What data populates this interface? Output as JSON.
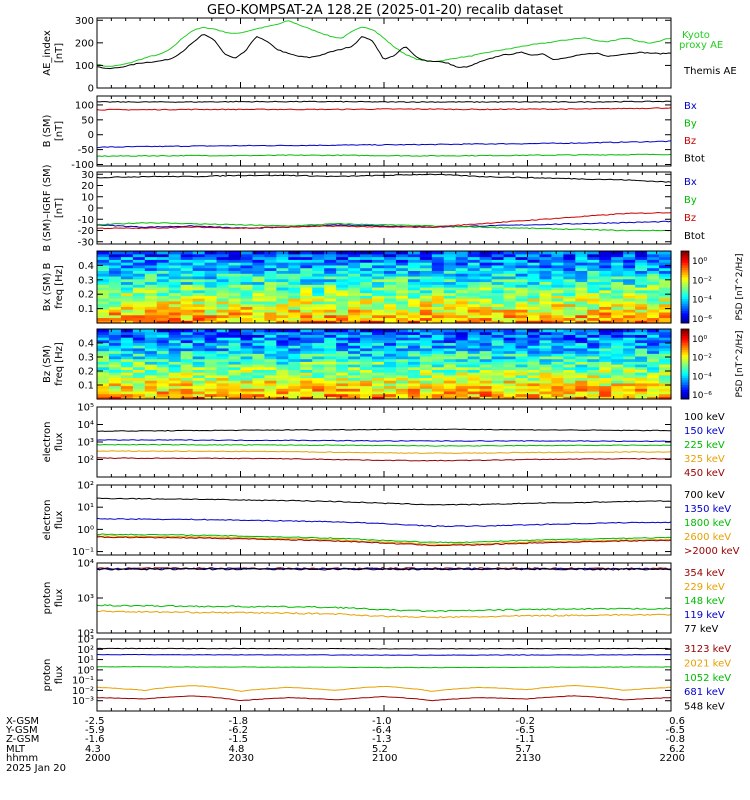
{
  "title": "GEO-KOMPSAT-2A 128.2E (2025-01-20) recalib dataset",
  "chart_data": [
    {
      "type": "line",
      "ylabel": "AE_index [nT]",
      "ylim": [
        0,
        310
      ],
      "yticks": [
        0,
        100,
        200,
        300
      ],
      "series": [
        {
          "name": "Kyoto proxy AE",
          "color": "#22cc22",
          "values": [
            105,
            95,
            100,
            110,
            125,
            140,
            150,
            175,
            220,
            255,
            268,
            262,
            248,
            240,
            250,
            262,
            272,
            282,
            298,
            280,
            262,
            245,
            228,
            220,
            250,
            272,
            258,
            220,
            180,
            150,
            128,
            120,
            118,
            125,
            135,
            140,
            150,
            160,
            168,
            175,
            185,
            192,
            198,
            205,
            212,
            218,
            222,
            210,
            205,
            215,
            220,
            205,
            200,
            210,
            222
          ]
        },
        {
          "name": "Themis AE",
          "color": "#000000",
          "values": [
            95,
            85,
            90,
            100,
            110,
            115,
            120,
            130,
            160,
            200,
            238,
            215,
            150,
            130,
            165,
            230,
            205,
            170,
            152,
            140,
            135,
            145,
            160,
            172,
            185,
            230,
            205,
            125,
            145,
            185,
            138,
            120,
            118,
            110,
            90,
            95,
            115,
            130,
            145,
            150,
            158,
            145,
            152,
            125,
            132,
            142,
            150,
            155,
            140,
            147,
            152,
            158,
            155,
            152,
            155
          ]
        }
      ]
    },
    {
      "type": "line",
      "ylabel": "B (SM) [nT]",
      "ylim": [
        -105,
        130
      ],
      "yticks": [
        -100,
        -50,
        0,
        50,
        100
      ],
      "series": [
        {
          "name": "Bx",
          "color": "#0000cc",
          "values": [
            -42,
            -40,
            -38,
            -37,
            -36,
            -35,
            -34,
            -33,
            -31,
            -30,
            -28,
            -25,
            -22
          ]
        },
        {
          "name": "By",
          "color": "#00bb00",
          "values": [
            -72,
            -71,
            -70,
            -70,
            -69,
            -69,
            -70,
            -71,
            -70,
            -69,
            -68,
            -67,
            -66
          ]
        },
        {
          "name": "Bz",
          "color": "#cc0000",
          "values": [
            84,
            84,
            85,
            85,
            85,
            85,
            86,
            86,
            85,
            86,
            86,
            88,
            90
          ]
        },
        {
          "name": "Btot",
          "color": "#000000",
          "values": [
            110,
            110,
            110,
            111,
            111,
            111,
            110,
            110,
            110,
            110,
            110,
            111,
            112
          ]
        }
      ]
    },
    {
      "type": "line",
      "ylabel": "B (SM)-IGRF (SM) [nT]",
      "ylim": [
        -32,
        32
      ],
      "yticks": [
        -30,
        -20,
        -10,
        0,
        10,
        20,
        30
      ],
      "series": [
        {
          "name": "Bx",
          "color": "#0000cc",
          "values": [
            -15,
            -17,
            -16,
            -18,
            -17,
            -15,
            -16,
            -17,
            -16,
            -15,
            -14,
            -13,
            -12
          ]
        },
        {
          "name": "By",
          "color": "#00bb00",
          "values": [
            -15,
            -13,
            -14,
            -15,
            -16,
            -14,
            -15,
            -16,
            -17,
            -18,
            -19,
            -20,
            -20
          ]
        },
        {
          "name": "Bz",
          "color": "#cc0000",
          "values": [
            -18,
            -18,
            -17,
            -18,
            -17,
            -16,
            -17,
            -17,
            -14,
            -11,
            -8,
            -5,
            -4
          ]
        },
        {
          "name": "Btot",
          "color": "#000000",
          "values": [
            27,
            28,
            28,
            29,
            29,
            28,
            29,
            30,
            28,
            27,
            26,
            25,
            23
          ]
        }
      ]
    },
    {
      "type": "heatmap",
      "ylabel": "Bx (SM) B freq [Hz]",
      "ylim": [
        0,
        0.5
      ],
      "yticks": [
        0.1,
        0.2,
        0.3,
        0.4
      ],
      "colorbar": {
        "label": "PSD [nT^2/Hz]",
        "ticks": [
          "10^0",
          "10^-2",
          "10^-4",
          "10^-6"
        ]
      }
    },
    {
      "type": "heatmap",
      "ylabel": "Bz (SM) freq [Hz]",
      "ylim": [
        0,
        0.5
      ],
      "yticks": [
        0.1,
        0.2,
        0.3,
        0.4
      ],
      "colorbar": {
        "label": "PSD [nT^2/Hz]",
        "ticks": [
          "10^0",
          "10^-2",
          "10^-4",
          "10^-6"
        ]
      }
    },
    {
      "type": "line",
      "ylabel": "electron flux",
      "log": true,
      "ylim": [
        10,
        100000
      ],
      "yticks": [
        100,
        1000,
        10000,
        100000
      ],
      "series": [
        {
          "name": "100 keV",
          "color": "#000000",
          "values": [
            4200,
            4300,
            4500,
            4700,
            4900,
            5000,
            5200,
            5300,
            5200,
            5000,
            4800,
            4600,
            4500
          ]
        },
        {
          "name": "150 keV",
          "color": "#0000cc",
          "values": [
            1300,
            1300,
            1300,
            1250,
            1250,
            1200,
            1150,
            1150,
            1150,
            1150,
            1150,
            1100,
            1100
          ]
        },
        {
          "name": "225 keV",
          "color": "#00bb00",
          "values": [
            700,
            700,
            690,
            680,
            670,
            650,
            620,
            600,
            600,
            620,
            640,
            650,
            650
          ]
        },
        {
          "name": "325 keV",
          "color": "#e8a000",
          "values": [
            300,
            300,
            295,
            290,
            280,
            260,
            240,
            230,
            235,
            250,
            260,
            270,
            270
          ]
        },
        {
          "name": "450 keV",
          "color": "#990000",
          "values": [
            120,
            120,
            118,
            115,
            110,
            100,
            90,
            85,
            90,
            100,
            105,
            110,
            110
          ]
        }
      ]
    },
    {
      "type": "line",
      "ylabel": "electron flux",
      "log": true,
      "ylim": [
        0.07,
        100
      ],
      "yticks": [
        0.1,
        1,
        10,
        100
      ],
      "series": [
        {
          "name": "700 keV",
          "color": "#000000",
          "values": [
            25,
            24,
            23,
            21,
            20,
            18,
            15,
            13,
            13,
            15,
            16,
            18,
            19
          ]
        },
        {
          "name": "1350 keV",
          "color": "#0000cc",
          "values": [
            3.0,
            2.9,
            2.8,
            2.6,
            2.4,
            2.2,
            1.8,
            1.4,
            1.4,
            1.6,
            1.8,
            2.0,
            2.1
          ]
        },
        {
          "name": "1800 keV",
          "color": "#00bb00",
          "values": [
            0.6,
            0.58,
            0.55,
            0.5,
            0.45,
            0.4,
            0.32,
            0.26,
            0.27,
            0.32,
            0.36,
            0.4,
            0.42
          ]
        },
        {
          "name": "2600 keV",
          "color": "#e8a000",
          "values": [
            0.5,
            0.48,
            0.46,
            0.42,
            0.38,
            0.33,
            0.27,
            0.21,
            0.22,
            0.27,
            0.3,
            0.33,
            0.35
          ]
        },
        {
          "name": ">2000 keV",
          "color": "#990000",
          "values": [
            0.45,
            0.43,
            0.41,
            0.38,
            0.34,
            0.3,
            0.24,
            0.19,
            0.2,
            0.24,
            0.27,
            0.3,
            0.32
          ]
        }
      ]
    },
    {
      "type": "line",
      "ylabel": "proton flux",
      "log": true,
      "ylim": [
        100,
        10000
      ],
      "yticks": [
        100,
        1000,
        10000
      ],
      "series": [
        {
          "name": "354 keV",
          "color": "#990000",
          "values": [
            7000,
            7000,
            7100,
            7100,
            7000,
            7000,
            7100,
            7000,
            7000,
            7100,
            7000,
            7000,
            7000
          ]
        },
        {
          "name": "229 keV",
          "color": "#e8a000",
          "values": [
            420,
            400,
            390,
            380,
            370,
            350,
            300,
            280,
            290,
            310,
            320,
            330,
            330
          ]
        },
        {
          "name": "148 keV",
          "color": "#00bb00",
          "values": [
            620,
            600,
            580,
            570,
            560,
            540,
            460,
            420,
            440,
            470,
            480,
            490,
            500
          ]
        },
        {
          "name": "119 keV",
          "color": "#0000cc",
          "values": [
            6800,
            6800,
            6900,
            6900,
            6800,
            6800,
            6900,
            6800,
            6800,
            6900,
            6800,
            6800,
            6800
          ]
        },
        {
          "name": "77 keV",
          "color": "#000000",
          "values": [
            6600,
            6600,
            6700,
            6700,
            6600,
            6600,
            6700,
            6600,
            6600,
            6700,
            6600,
            6600,
            6600
          ]
        }
      ]
    },
    {
      "type": "line",
      "ylabel": "proton flux",
      "log": true,
      "ylim": [
        0.0001,
        1000
      ],
      "yticks": [
        0.001,
        0.01,
        0.1,
        1,
        10,
        100,
        1000
      ],
      "series": [
        {
          "name": "3123 keV",
          "color": "#990000",
          "values": [
            0.002,
            0.0015,
            0.003,
            0.001,
            0.002,
            0.0012,
            0.0025,
            0.001,
            0.002,
            0.0015,
            0.003,
            0.0012,
            0.002
          ]
        },
        {
          "name": "2021 keV",
          "color": "#e8a000",
          "values": [
            0.02,
            0.01,
            0.03,
            0.008,
            0.02,
            0.01,
            0.025,
            0.008,
            0.02,
            0.012,
            0.03,
            0.01,
            0.02
          ]
        },
        {
          "name": "1052 keV",
          "color": "#00bb00",
          "values": [
            2,
            2,
            1.9,
            1.9,
            1.8,
            1.8,
            1.7,
            1.7,
            1.7,
            1.8,
            1.8,
            1.9,
            1.9
          ]
        },
        {
          "name": "681 keV",
          "color": "#0000cc",
          "values": [
            30,
            30,
            29,
            29,
            28,
            28,
            27,
            27,
            27,
            28,
            28,
            29,
            29
          ]
        },
        {
          "name": "548 keV",
          "color": "#000000",
          "values": [
            120,
            120,
            118,
            118,
            115,
            115,
            112,
            112,
            112,
            115,
            115,
            118,
            118
          ]
        }
      ]
    }
  ],
  "xaxis": {
    "row_labels": [
      "X-GSM",
      "Y-GSM",
      "Z-GSM",
      "MLT",
      "hhmm",
      "2025 Jan 20"
    ],
    "columns": [
      {
        "xgsm": "-2.5",
        "ygsm": "-5.9",
        "zgsm": "-1.6",
        "mlt": "4.3",
        "hhmm": "2000"
      },
      {
        "xgsm": "-1.8",
        "ygsm": "-6.2",
        "zgsm": "-1.5",
        "mlt": "4.8",
        "hhmm": "2030"
      },
      {
        "xgsm": "-1.0",
        "ygsm": "-6.4",
        "zgsm": "-1.3",
        "mlt": "5.2",
        "hhmm": "2100"
      },
      {
        "xgsm": "-0.2",
        "ygsm": "-6.5",
        "zgsm": "-1.1",
        "mlt": "5.7",
        "hhmm": "2130"
      },
      {
        "xgsm": "0.6",
        "ygsm": "-6.5",
        "zgsm": "-0.8",
        "mlt": "6.2",
        "hhmm": "2200"
      }
    ]
  },
  "colors": {
    "black": "#000000",
    "blue": "#0000cc",
    "green": "#00bb00",
    "red": "#cc0000",
    "orange": "#e8a000",
    "darkred": "#990000"
  }
}
